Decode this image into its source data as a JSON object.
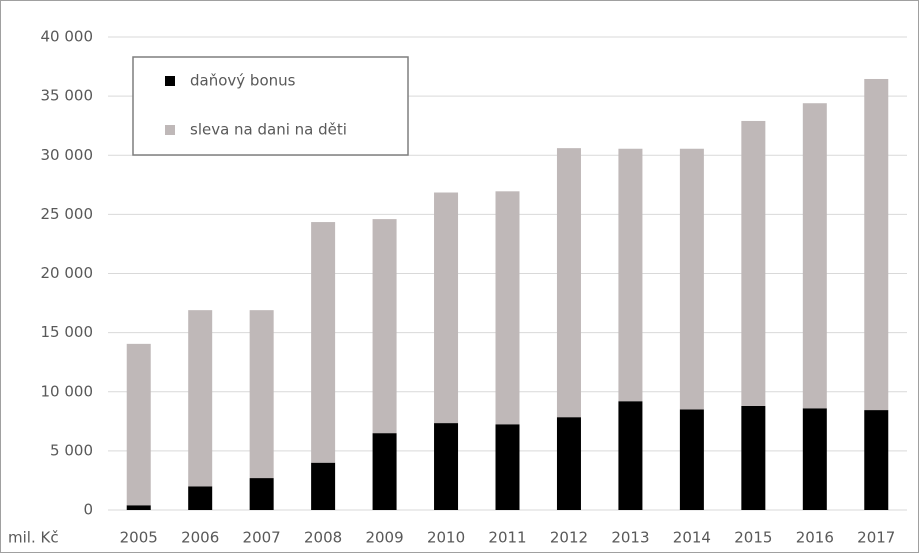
{
  "chart_data": {
    "type": "stacked_bar",
    "y_unit": "mil. Kč",
    "categories": [
      "2005",
      "2006",
      "2007",
      "2008",
      "2009",
      "2010",
      "2011",
      "2012",
      "2013",
      "2014",
      "2015",
      "2016",
      "2017"
    ],
    "series": [
      {
        "name": "daňový bonus",
        "color": "#000000",
        "values": [
          400,
          2000,
          2700,
          4000,
          6500,
          7350,
          7250,
          7850,
          9200,
          8500,
          8800,
          8600,
          8450
        ]
      },
      {
        "name": "sleva na dani na děti",
        "color": "#bfb8b8",
        "values": [
          13650,
          14900,
          14200,
          20350,
          18100,
          19500,
          19700,
          22750,
          21350,
          22050,
          24100,
          25800,
          28000
        ]
      }
    ],
    "ylim": [
      0,
      40000
    ],
    "yticks": [
      0,
      {
        "value": 5000,
        "label": "5 000"
      },
      {
        "value": 10000,
        "label": "10 000"
      },
      {
        "value": 15000,
        "label": "15 000"
      },
      {
        "value": 20000,
        "label": "20 000"
      },
      {
        "value": 25000,
        "label": "25 000"
      },
      {
        "value": 30000,
        "label": "30 000"
      },
      {
        "value": 35000,
        "label": "35 000"
      },
      {
        "value": 40000,
        "label": "40 000"
      }
    ],
    "grid": true,
    "legend": "upper left"
  }
}
